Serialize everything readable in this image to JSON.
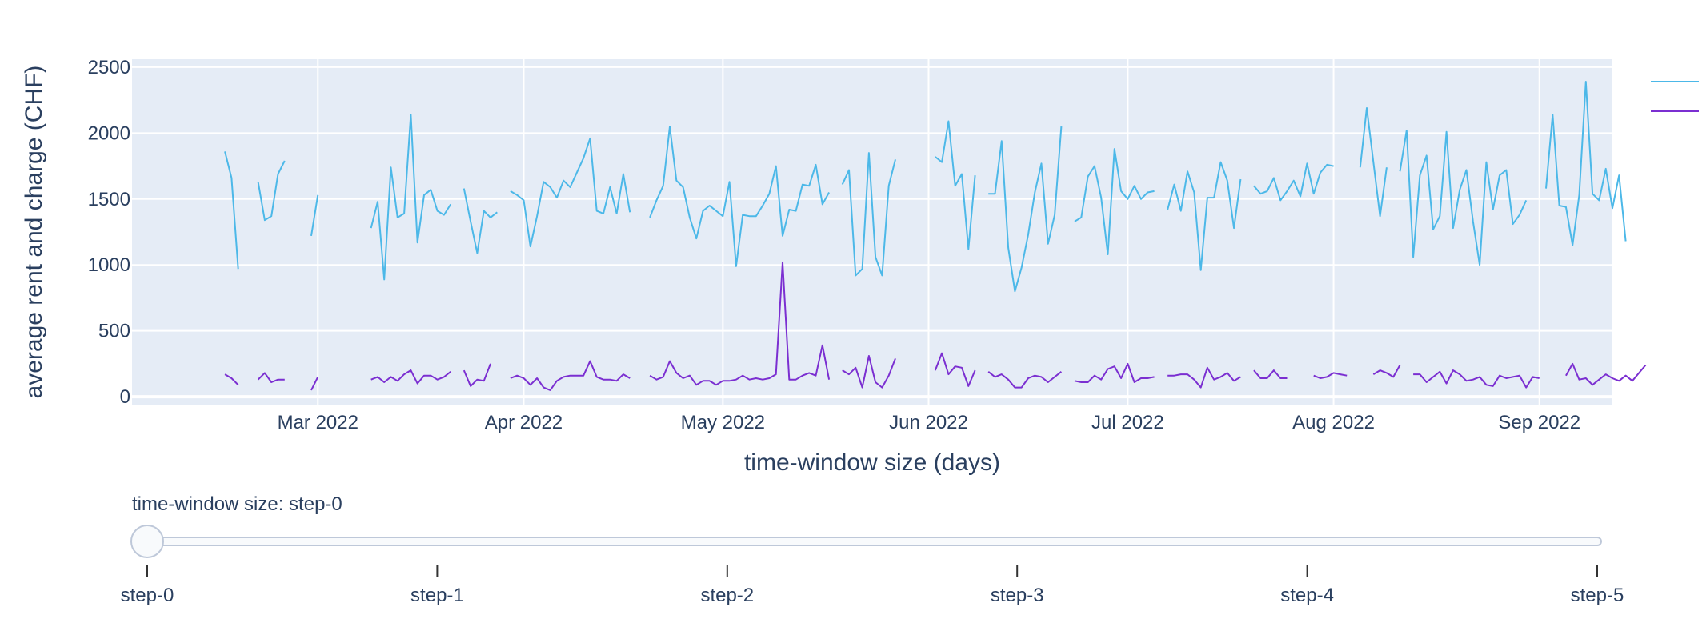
{
  "chart_data": {
    "type": "line",
    "title": "",
    "xlabel": "time-window size (days)",
    "ylabel": "average rent and charge (CHF)",
    "x_range": [
      "2022-02-01",
      "2022-09-12"
    ],
    "ylim": [
      -60,
      2560
    ],
    "y_ticks": [
      0,
      500,
      1000,
      1500,
      2000,
      2500
    ],
    "x_ticks": [
      {
        "date": "2022-03-01",
        "label": "Mar 2022"
      },
      {
        "date": "2022-04-01",
        "label": "Apr 2022"
      },
      {
        "date": "2022-05-01",
        "label": "May 2022"
      },
      {
        "date": "2022-06-01",
        "label": "Jun 2022"
      },
      {
        "date": "2022-07-01",
        "label": "Jul 2022"
      },
      {
        "date": "2022-08-01",
        "label": "Aug 2022"
      },
      {
        "date": "2022-09-01",
        "label": "Sep 2022"
      }
    ],
    "grid": true,
    "legend_placement": "top-right",
    "series": [
      {
        "color": "#4cb8e8",
        "start_date": "2022-02-15",
        "values": [
          1860,
          1660,
          970,
          null,
          null,
          1630,
          1340,
          1370,
          1690,
          1790,
          null,
          null,
          null,
          1220,
          1530,
          null,
          null,
          null,
          null,
          null,
          null,
          null,
          1280,
          1480,
          890,
          1740,
          1360,
          1390,
          2140,
          1170,
          1530,
          1570,
          1410,
          1380,
          1460,
          null,
          1580,
          1330,
          1090,
          1410,
          1360,
          1400,
          null,
          1560,
          1530,
          1490,
          1140,
          1370,
          1630,
          1590,
          1510,
          1640,
          1590,
          1700,
          1810,
          1960,
          1410,
          1390,
          1590,
          1390,
          1690,
          1400,
          null,
          null,
          1360,
          1490,
          1600,
          2050,
          1640,
          1590,
          1360,
          1200,
          1410,
          1450,
          1410,
          1370,
          1630,
          990,
          1380,
          1370,
          1370,
          1450,
          1540,
          1750,
          1220,
          1420,
          1410,
          1610,
          1600,
          1760,
          1460,
          1550,
          null,
          1610,
          1720,
          920,
          970,
          1850,
          1060,
          920,
          1600,
          1800,
          null,
          null,
          null,
          null,
          null,
          1820,
          1780,
          2090,
          1600,
          1690,
          1120,
          1680,
          null,
          1540,
          1540,
          1940,
          1130,
          800,
          980,
          1230,
          1550,
          1770,
          1160,
          1380,
          2050,
          null,
          1330,
          1360,
          1670,
          1750,
          1510,
          1080,
          1880,
          1560,
          1500,
          1600,
          1500,
          1550,
          1560,
          null,
          1420,
          1610,
          1410,
          1710,
          1550,
          960,
          1510,
          1510,
          1780,
          1640,
          1280,
          1650,
          null,
          1600,
          1540,
          1560,
          1660,
          1490,
          1560,
          1640,
          1520,
          1770,
          1540,
          1700,
          1760,
          1750,
          null,
          null,
          null,
          1740,
          2190,
          1780,
          1370,
          1740,
          null,
          1710,
          2020,
          1060,
          1680,
          1830,
          1270,
          1370,
          2010,
          1280,
          1570,
          1720,
          1330,
          1000,
          1780,
          1420,
          1680,
          1720,
          1310,
          1380,
          1490,
          null,
          null,
          1580,
          2140,
          1450,
          1440,
          1150,
          1530,
          2390,
          1540,
          1490,
          1730,
          1430,
          1680,
          1180
        ]
      },
      {
        "color": "#7b2fd1",
        "start_date": "2022-02-15",
        "values": [
          170,
          140,
          90,
          null,
          null,
          130,
          180,
          110,
          130,
          130,
          null,
          null,
          null,
          50,
          150,
          null,
          null,
          null,
          null,
          null,
          null,
          null,
          130,
          150,
          110,
          150,
          120,
          170,
          200,
          100,
          160,
          160,
          130,
          150,
          190,
          null,
          200,
          80,
          130,
          120,
          250,
          null,
          null,
          140,
          160,
          140,
          90,
          140,
          70,
          50,
          120,
          150,
          160,
          160,
          160,
          270,
          150,
          130,
          130,
          120,
          170,
          140,
          null,
          null,
          160,
          130,
          150,
          270,
          180,
          140,
          160,
          90,
          120,
          120,
          90,
          120,
          120,
          130,
          160,
          130,
          140,
          130,
          140,
          170,
          1020,
          130,
          130,
          160,
          180,
          160,
          390,
          130,
          null,
          200,
          170,
          220,
          70,
          310,
          110,
          70,
          160,
          290,
          null,
          null,
          null,
          null,
          null,
          200,
          330,
          170,
          230,
          220,
          80,
          200,
          null,
          190,
          150,
          170,
          130,
          70,
          70,
          140,
          160,
          150,
          110,
          150,
          190,
          null,
          120,
          110,
          110,
          160,
          130,
          210,
          230,
          140,
          250,
          110,
          140,
          140,
          150,
          null,
          160,
          160,
          170,
          170,
          130,
          70,
          220,
          130,
          150,
          180,
          120,
          150,
          null,
          200,
          140,
          140,
          200,
          140,
          140,
          null,
          null,
          null,
          160,
          140,
          150,
          180,
          170,
          160,
          null,
          null,
          null,
          170,
          200,
          180,
          150,
          240,
          null,
          170,
          170,
          110,
          150,
          190,
          100,
          200,
          170,
          120,
          130,
          150,
          90,
          80,
          160,
          140,
          150,
          160,
          70,
          150,
          140,
          null,
          null,
          null,
          160,
          250,
          130,
          140,
          90,
          130,
          170,
          140,
          120,
          160,
          120,
          180,
          240
        ]
      }
    ]
  },
  "slider": {
    "current_label": "time-window size: step-0",
    "steps": [
      "step-0",
      "step-1",
      "step-2",
      "step-3",
      "step-4",
      "step-5"
    ],
    "active_index": 0
  }
}
